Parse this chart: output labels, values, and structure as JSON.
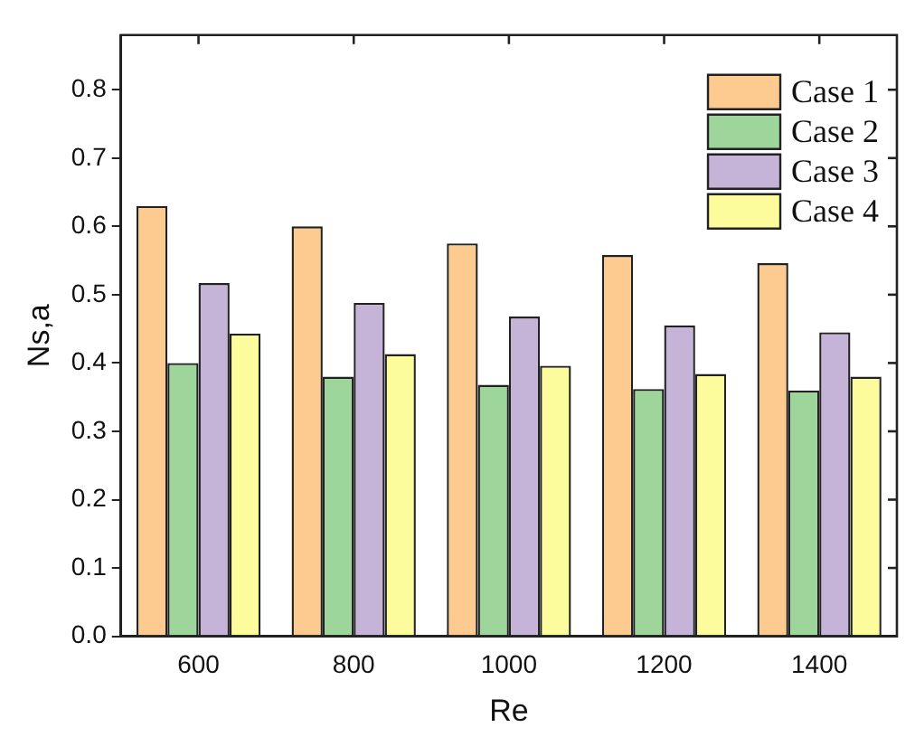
{
  "chart_data": {
    "type": "bar",
    "xlabel": "Re",
    "ylabel": "Ns,a",
    "categories": [
      "600",
      "800",
      "1000",
      "1200",
      "1400"
    ],
    "series": [
      {
        "name": "Case 1",
        "color": "#fdca8f",
        "values": [
          0.63,
          0.6,
          0.575,
          0.558,
          0.546
        ]
      },
      {
        "name": "Case 2",
        "color": "#9dd59a",
        "values": [
          0.4,
          0.38,
          0.368,
          0.362,
          0.36
        ]
      },
      {
        "name": "Case 3",
        "color": "#c5b3d8",
        "values": [
          0.517,
          0.488,
          0.468,
          0.455,
          0.445
        ]
      },
      {
        "name": "Case 4",
        "color": "#fdfc9c",
        "values": [
          0.443,
          0.413,
          0.396,
          0.384,
          0.38
        ]
      }
    ],
    "ylim": [
      0,
      0.88
    ],
    "yticks": [
      {
        "value": 0,
        "label": "0.0"
      },
      0.1,
      0.2,
      0.3,
      0.4,
      0.5,
      0.6,
      0.7,
      0.8
    ],
    "grid": false,
    "legend": "top right"
  }
}
